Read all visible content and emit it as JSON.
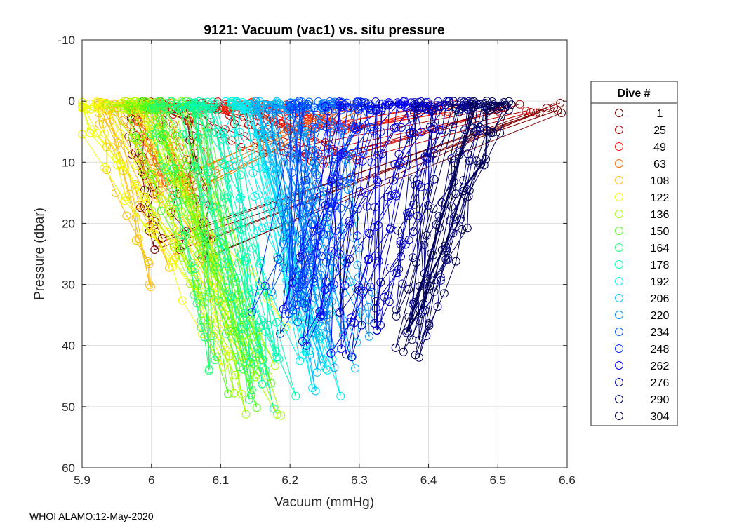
{
  "chart_data": {
    "type": "scatter",
    "title": "9121: Vacuum (vac1) vs. situ pressure",
    "xlabel": "Vacuum (mmHg)",
    "ylabel": "Pressure (dbar)",
    "xlim": [
      5.9,
      6.6
    ],
    "ylim": [
      60,
      -10
    ],
    "y_reversed": true,
    "xticks": [
      "5.9",
      "6",
      "6.1",
      "6.2",
      "6.3",
      "6.4",
      "6.5",
      "6.6"
    ],
    "yticks": [
      "-10",
      "0",
      "10",
      "20",
      "30",
      "40",
      "50",
      "60"
    ],
    "grid": true,
    "marker": "open-circle",
    "legend_title": "Dive #",
    "legend_position": "outside-right",
    "series": [
      {
        "name": "1",
        "color": "#800000",
        "x_surface": 6.6,
        "x_top": 6.0,
        "x_deep": 6.04,
        "max_pressure": 25,
        "spread": 0.1
      },
      {
        "name": "25",
        "color": "#c00000",
        "x_surface": 6.55,
        "x_top": 6.05,
        "x_deep": 6.22,
        "max_pressure": 10,
        "spread": 0.15
      },
      {
        "name": "49",
        "color": "#ff1a00",
        "x_surface": 6.45,
        "x_top": 6.1,
        "x_deep": 6.23,
        "max_pressure": 5,
        "spread": 0.15
      },
      {
        "name": "63",
        "color": "#ff6a00",
        "x_surface": 6.3,
        "x_top": 6.0,
        "x_deep": 6.05,
        "max_pressure": 15,
        "spread": 0.1
      },
      {
        "name": "108",
        "color": "#ffc000",
        "x_surface": 5.97,
        "x_top": 5.96,
        "x_deep": 6.05,
        "max_pressure": 30,
        "spread": 0.12
      },
      {
        "name": "122",
        "color": "#eeff00",
        "x_surface": 6.02,
        "x_top": 5.92,
        "x_deep": 6.15,
        "max_pressure": 42,
        "spread": 0.1
      },
      {
        "name": "136",
        "color": "#a0ff00",
        "x_surface": 6.05,
        "x_top": 5.97,
        "x_deep": 6.16,
        "max_pressure": 50,
        "spread": 0.08
      },
      {
        "name": "150",
        "color": "#50ff20",
        "x_surface": 6.08,
        "x_top": 6.0,
        "x_deep": 6.15,
        "max_pressure": 49,
        "spread": 0.08
      },
      {
        "name": "164",
        "color": "#20ff70",
        "x_surface": 6.1,
        "x_top": 6.03,
        "x_deep": 6.12,
        "max_pressure": 47,
        "spread": 0.08
      },
      {
        "name": "178",
        "color": "#00ffb0",
        "x_surface": 6.12,
        "x_top": 6.07,
        "x_deep": 6.17,
        "max_pressure": 48,
        "spread": 0.08
      },
      {
        "name": "192",
        "color": "#00f0f0",
        "x_surface": 6.15,
        "x_top": 6.12,
        "x_deep": 6.23,
        "max_pressure": 46,
        "spread": 0.08
      },
      {
        "name": "206",
        "color": "#00c0ff",
        "x_surface": 6.18,
        "x_top": 6.18,
        "x_deep": 6.27,
        "max_pressure": 46,
        "spread": 0.08
      },
      {
        "name": "220",
        "color": "#0090ff",
        "x_surface": 6.2,
        "x_top": 6.22,
        "x_deep": 6.27,
        "max_pressure": 42,
        "spread": 0.1
      },
      {
        "name": "234",
        "color": "#0060ff",
        "x_surface": 6.22,
        "x_top": 6.25,
        "x_deep": 6.22,
        "max_pressure": 36,
        "spread": 0.1
      },
      {
        "name": "248",
        "color": "#0030ff",
        "x_surface": 6.25,
        "x_top": 6.3,
        "x_deep": 6.19,
        "max_pressure": 38,
        "spread": 0.1
      },
      {
        "name": "262",
        "color": "#0000f0",
        "x_surface": 6.3,
        "x_top": 6.35,
        "x_deep": 6.23,
        "max_pressure": 40,
        "spread": 0.1
      },
      {
        "name": "276",
        "color": "#0000c0",
        "x_surface": 6.35,
        "x_top": 6.4,
        "x_deep": 6.3,
        "max_pressure": 40,
        "spread": 0.1
      },
      {
        "name": "290",
        "color": "#00008c",
        "x_surface": 6.42,
        "x_top": 6.45,
        "x_deep": 6.36,
        "max_pressure": 38,
        "spread": 0.08
      },
      {
        "name": "304",
        "color": "#000058",
        "x_surface": 6.48,
        "x_top": 6.49,
        "x_deep": 6.36,
        "max_pressure": 41,
        "spread": 0.05
      }
    ]
  },
  "footer": {
    "credit": "WHOI ALAMO:12-May-2020"
  }
}
